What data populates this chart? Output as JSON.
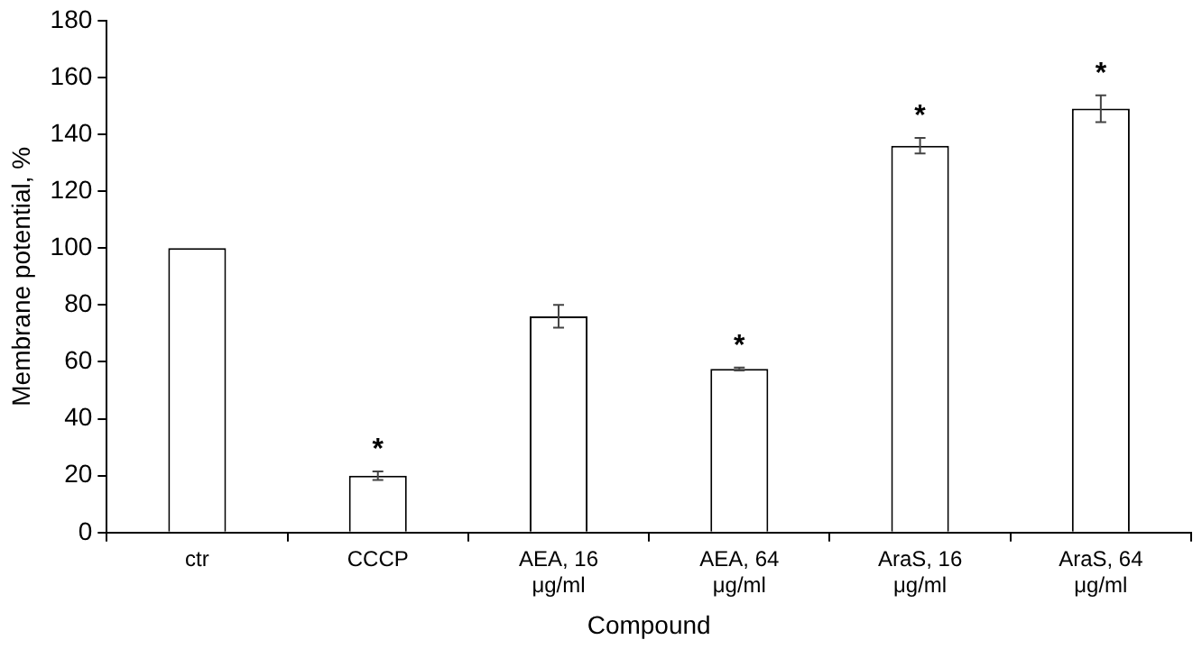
{
  "chart_data": {
    "type": "bar",
    "xlabel": "Compound",
    "ylabel": "Membrane potential, %",
    "categories": [
      "ctr",
      "CCCP",
      "AEA, 16 μg/ml",
      "AEA, 64 μg/ml",
      "AraS, 16 μg/ml",
      "AraS, 64 μg/ml"
    ],
    "values": [
      100,
      20,
      76,
      57.5,
      136,
      149
    ],
    "errors": [
      null,
      1.5,
      4,
      0.5,
      2.7,
      4.7
    ],
    "color": "#ffffff",
    "ylim": [
      0,
      180
    ],
    "yticks": [
      0,
      20,
      40,
      60,
      80,
      100,
      120,
      140,
      160,
      180
    ],
    "grid": false,
    "legend": false,
    "annotations": [
      {
        "text": "*",
        "x": "CCCP",
        "y": 20
      },
      {
        "text": "*",
        "x": "AEA, 64 μg/ml",
        "y": 57.5
      },
      {
        "text": "*",
        "x": "AraS, 16 μg/ml",
        "y": 136
      },
      {
        "text": "*",
        "x": "AraS, 64 μg/ml",
        "y": 149
      }
    ]
  }
}
